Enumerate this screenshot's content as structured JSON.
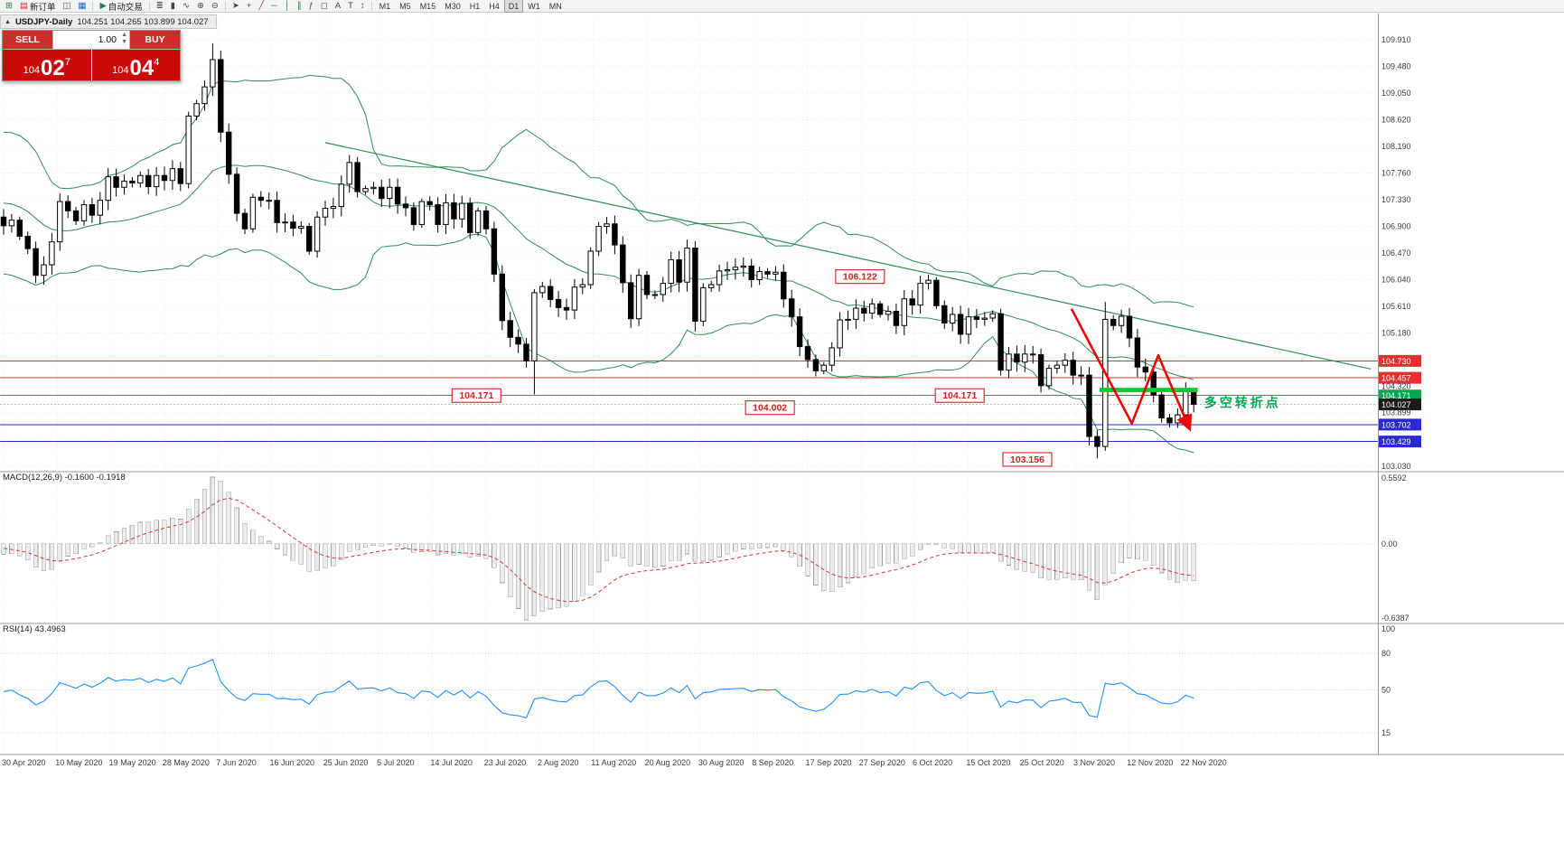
{
  "chart": {
    "symbol_period": "USDJPY-Daily",
    "ohlc_text": "104.251 104.265 103.899 104.027"
  },
  "trade_panel": {
    "sell_label": "SELL",
    "buy_label": "BUY",
    "volume": "1.00",
    "bid": {
      "prefix": "104",
      "big": "02",
      "pip": "7"
    },
    "ask": {
      "prefix": "104",
      "big": "04",
      "pip": "4"
    },
    "tile_color": "#c90b0b",
    "button_color": "#d02a2a"
  },
  "toolbar": {
    "items": [
      {
        "name": "new-chart-icon",
        "glyph": "⊞",
        "color": "#1a7f37"
      },
      {
        "name": "new-order-button",
        "glyph": "▤",
        "color": "#c62828",
        "label": "新订单"
      },
      {
        "name": "chart-windows-icon",
        "glyph": "◫",
        "color": "#555555"
      },
      {
        "name": "market-watch-icon",
        "glyph": "▦",
        "color": "#1565c0"
      },
      {
        "sep": true
      },
      {
        "name": "auto-trading-button",
        "glyph": "▶",
        "color": "#1a7f37",
        "label": "自动交易"
      },
      {
        "sep": true
      },
      {
        "name": "bar-chart-icon",
        "glyph": "≣",
        "color": "#444444"
      },
      {
        "name": "candle-chart-icon",
        "glyph": "▮",
        "color": "#444444"
      },
      {
        "name": "line-chart-icon",
        "glyph": "∿",
        "color": "#444444"
      },
      {
        "name": "zoom-in-icon",
        "glyph": "⊕",
        "color": "#444444"
      },
      {
        "name": "zoom-out-icon",
        "glyph": "⊖",
        "color": "#444444"
      },
      {
        "sep": true
      },
      {
        "name": "cursor-icon",
        "glyph": "➤",
        "color": "#444444"
      },
      {
        "name": "crosshair-icon",
        "glyph": "+",
        "color": "#444444"
      },
      {
        "name": "trendline-icon",
        "glyph": "╱",
        "color": "#c62828"
      },
      {
        "name": "horizontal-line-icon",
        "glyph": "─",
        "color": "#1565c0"
      },
      {
        "name": "vertical-line-icon",
        "glyph": "│",
        "color": "#1565c0"
      },
      {
        "name": "channel-icon",
        "glyph": "∥",
        "color": "#1a7f37"
      },
      {
        "name": "fibonacci-icon",
        "glyph": "ƒ",
        "color": "#8e24aa"
      },
      {
        "name": "shapes-icon",
        "glyph": "◻",
        "color": "#444444"
      },
      {
        "name": "text-icon",
        "glyph": "A",
        "color": "#444444"
      },
      {
        "name": "text-label-icon",
        "glyph": "T",
        "color": "#444444"
      },
      {
        "name": "arrows-icon",
        "glyph": "↕",
        "color": "#444444"
      },
      {
        "sep": true
      }
    ],
    "timeframes": [
      "M1",
      "M5",
      "M15",
      "M30",
      "H1",
      "H4",
      "D1",
      "W1",
      "MN"
    ],
    "active_timeframe": "D1"
  },
  "chart_data": {
    "type": "candlestick",
    "symbol": "USDJPY",
    "timeframe": "Daily",
    "last_ohlc": {
      "open": 104.251,
      "high": 104.265,
      "low": 103.899,
      "close": 104.027
    },
    "first_open": 107.05,
    "pre_closes": [
      107.0,
      107.3,
      107.7,
      108.0,
      108.3,
      108.4,
      108.1,
      107.7,
      107.2,
      106.7,
      106.4,
      106.5,
      106.8,
      107.1,
      107.4,
      107.3,
      107.1,
      106.9,
      106.8,
      106.9
    ],
    "closes": [
      106.91,
      107.0,
      106.74,
      106.54,
      106.11,
      106.28,
      106.65,
      107.3,
      107.15,
      106.99,
      107.25,
      107.08,
      107.32,
      107.7,
      107.53,
      107.63,
      107.6,
      107.72,
      107.54,
      107.72,
      107.64,
      107.83,
      107.59,
      108.68,
      108.88,
      109.15,
      109.59,
      108.42,
      107.74,
      107.11,
      106.86,
      107.37,
      107.32,
      107.32,
      106.96,
      106.97,
      106.87,
      106.9,
      106.5,
      107.05,
      107.19,
      107.22,
      107.58,
      107.93,
      107.46,
      107.51,
      107.53,
      107.35,
      107.53,
      107.26,
      107.2,
      106.93,
      107.3,
      107.25,
      106.93,
      107.28,
      107.02,
      107.27,
      106.8,
      107.15,
      106.86,
      106.13,
      105.38,
      105.11,
      105.0,
      104.73,
      105.83,
      105.93,
      105.72,
      105.59,
      105.55,
      105.92,
      105.96,
      106.5,
      106.9,
      106.94,
      106.6,
      105.99,
      105.41,
      106.11,
      105.8,
      105.8,
      105.98,
      106.36,
      106.0,
      106.55,
      105.37,
      105.91,
      105.96,
      106.18,
      106.2,
      106.24,
      106.26,
      106.04,
      106.17,
      106.13,
      106.16,
      105.73,
      105.44,
      104.96,
      104.75,
      104.57,
      104.66,
      104.94,
      105.39,
      105.4,
      105.58,
      105.5,
      105.65,
      105.48,
      105.53,
      105.3,
      105.73,
      105.63,
      105.98,
      106.03,
      105.62,
      105.34,
      105.48,
      105.16,
      105.44,
      105.4,
      105.42,
      105.49,
      104.58,
      104.84,
      104.71,
      104.84,
      104.83,
      104.33,
      104.61,
      104.66,
      104.74,
      104.5,
      104.5,
      103.51,
      103.35,
      105.4,
      105.3,
      105.45,
      105.1,
      104.63,
      104.55,
      104.18,
      103.81,
      103.73,
      103.86,
      104.25,
      104.03
    ],
    "wick_overrides": {
      "26": {
        "h": 109.85
      },
      "66": {
        "l": 104.19
      },
      "86": {
        "l": 105.2
      },
      "136": {
        "l": 103.156
      },
      "137": {
        "h": 105.68
      },
      "146": {
        "l": 103.65
      },
      "148": {
        "h": 104.265,
        "l": 103.899
      }
    },
    "x_dates": [
      "30 Apr 2020",
      "10 May 2020",
      "19 May 2020",
      "28 May 2020",
      "7 Jun 2020",
      "16 Jun 2020",
      "25 Jun 2020",
      "5 Jul 2020",
      "14 Jul 2020",
      "23 Jul 2020",
      "2 Aug 2020",
      "11 Aug 2020",
      "20 Aug 2020",
      "30 Aug 2020",
      "8 Sep 2020",
      "17 Sep 2020",
      "27 Sep 2020",
      "6 Oct 2020",
      "15 Oct 2020",
      "25 Oct 2020",
      "3 Nov 2020",
      "12 Nov 2020",
      "22 Nov 2020"
    ],
    "price_axis": [
      {
        "t": "109.910",
        "v": 109.91,
        "style": "plain"
      },
      {
        "t": "109.480",
        "v": 109.48,
        "style": "plain"
      },
      {
        "t": "109.050",
        "v": 109.05,
        "style": "plain"
      },
      {
        "t": "108.620",
        "v": 108.62,
        "style": "plain"
      },
      {
        "t": "108.190",
        "v": 108.19,
        "style": "plain"
      },
      {
        "t": "107.760",
        "v": 107.76,
        "style": "plain"
      },
      {
        "t": "107.330",
        "v": 107.33,
        "style": "plain"
      },
      {
        "t": "106.900",
        "v": 106.9,
        "style": "plain"
      },
      {
        "t": "106.470",
        "v": 106.47,
        "style": "plain"
      },
      {
        "t": "106.040",
        "v": 106.04,
        "style": "plain"
      },
      {
        "t": "105.610",
        "v": 105.61,
        "style": "plain"
      },
      {
        "t": "105.180",
        "v": 105.18,
        "style": "plain"
      },
      {
        "t": "104.730",
        "v": 104.73,
        "style": "box",
        "bg": "#e03030"
      },
      {
        "t": "104.457",
        "v": 104.457,
        "style": "box",
        "bg": "#e03030"
      },
      {
        "t": "104.320",
        "v": 104.32,
        "style": "plain"
      },
      {
        "t": "104.171",
        "v": 104.171,
        "style": "box",
        "bg": "#00a651"
      },
      {
        "t": "104.027",
        "v": 104.027,
        "style": "box",
        "bg": "#1a1a1a"
      },
      {
        "t": "103.899",
        "v": 103.899,
        "style": "plain"
      },
      {
        "t": "103.702",
        "v": 103.702,
        "style": "box",
        "bg": "#2a2ad0"
      },
      {
        "t": "103.429",
        "v": 103.429,
        "style": "box",
        "bg": "#2a2ad0"
      },
      {
        "t": "103.030",
        "v": 103.03,
        "style": "plain"
      }
    ],
    "hlines": [
      {
        "price": 104.73,
        "color": "#e03030"
      },
      {
        "price": 104.457,
        "color": "#e03030"
      },
      {
        "price": 104.171,
        "color": "#00a651"
      },
      {
        "price": 103.702,
        "color": "#2a2ad0"
      },
      {
        "price": 103.429,
        "color": "#2a2ad0"
      },
      {
        "price": 104.027,
        "color": "#b8b8b8",
        "dash": "2,2"
      }
    ],
    "trendline": {
      "p1": [
        40,
        108.25
      ],
      "p2": [
        170,
        104.6
      ],
      "color": "#2e8b57"
    },
    "bollinger_color": "#2e8b57",
    "indicators": {
      "macd": {
        "label": "MACD(12,26,9)",
        "values_text": "-0.1600 -0.1918",
        "scale_max": "0.5592",
        "scale_zero": "0.00",
        "scale_min": "-0.6387",
        "histogram_color": "#ececec",
        "signal_color": "#e03030"
      },
      "rsi": {
        "label": "RSI(14)",
        "value_text": "43.4963",
        "levels": [
          "100",
          "80",
          "50",
          "15"
        ],
        "line_color": "#1e90ff"
      }
    },
    "annotations": {
      "price_label_boxes": [
        {
          "text": "106.122",
          "i": 106.5,
          "price": 106.09
        },
        {
          "text": "104.171",
          "i": 58.8,
          "price": 104.171
        },
        {
          "text": "104.002",
          "i": 95.3,
          "price": 103.975
        },
        {
          "text": "104.171",
          "i": 118.9,
          "price": 104.171
        },
        {
          "text": "103.156",
          "i": 127.3,
          "price": 103.14
        }
      ],
      "zigzag": {
        "color": "#f00000",
        "points": [
          [
            132.8,
            105.57
          ],
          [
            140.3,
            103.72
          ],
          [
            143.6,
            104.82
          ],
          [
            147.4,
            103.66
          ]
        ]
      },
      "support_bar": {
        "i1": 136.3,
        "i2": 148.5,
        "price": 104.26,
        "color": "#00cc33"
      },
      "note_text": {
        "text": "多空转折点",
        "i": 149.3,
        "price": 104.04,
        "color": "#00a651"
      }
    }
  }
}
